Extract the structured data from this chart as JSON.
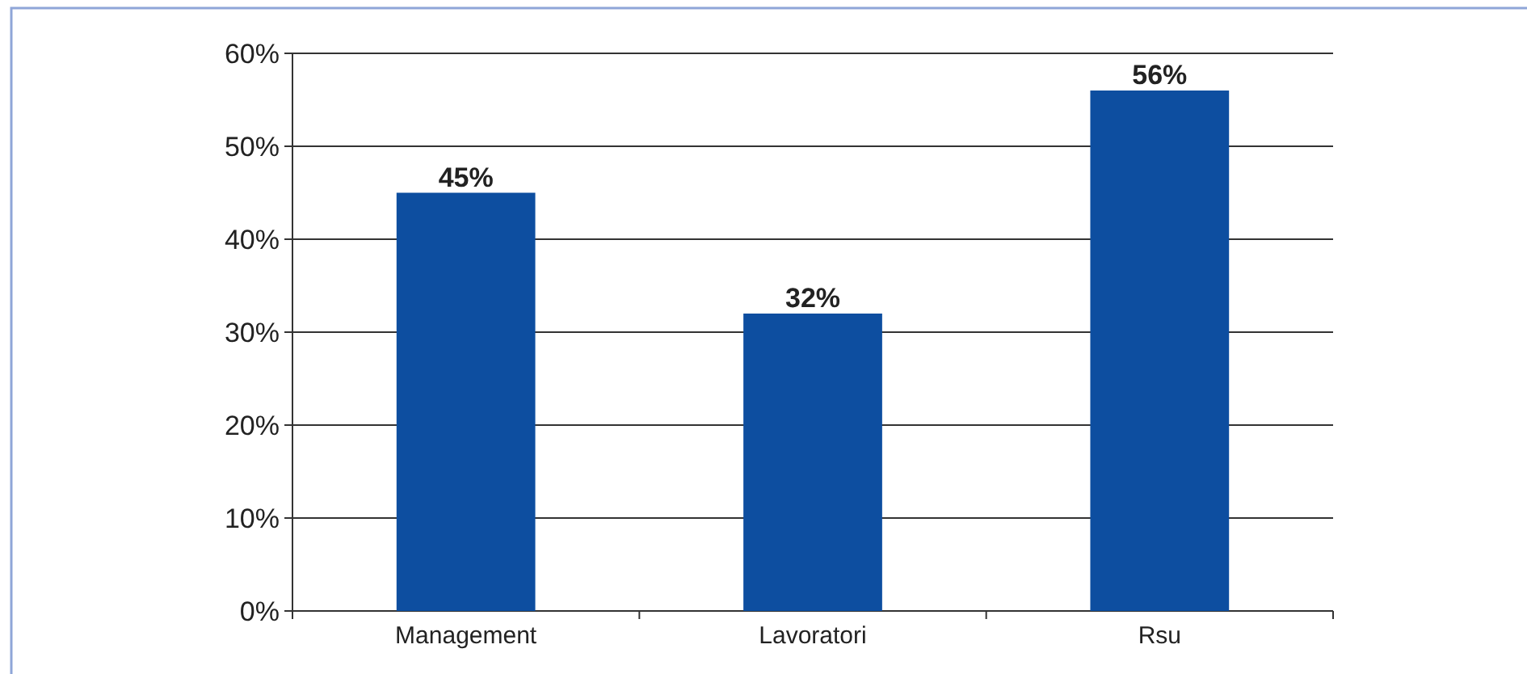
{
  "chart_data": {
    "type": "bar",
    "categories": [
      "Management",
      "Lavoratori",
      "Rsu"
    ],
    "values": [
      45,
      32,
      56
    ],
    "color": "#0d4ea0",
    "value_labels": [
      "45%",
      "32%",
      "56%"
    ],
    "ylim": [
      0,
      60
    ],
    "yticks": [
      {
        "value": 0,
        "label": "0%"
      },
      {
        "value": 10,
        "label": "10%"
      },
      {
        "value": 20,
        "label": "20%"
      },
      {
        "value": 30,
        "label": "30%"
      },
      {
        "value": 40,
        "label": "40%"
      },
      {
        "value": 50,
        "label": "50%"
      },
      {
        "value": 60,
        "label": "60%"
      }
    ],
    "grid": "y"
  }
}
